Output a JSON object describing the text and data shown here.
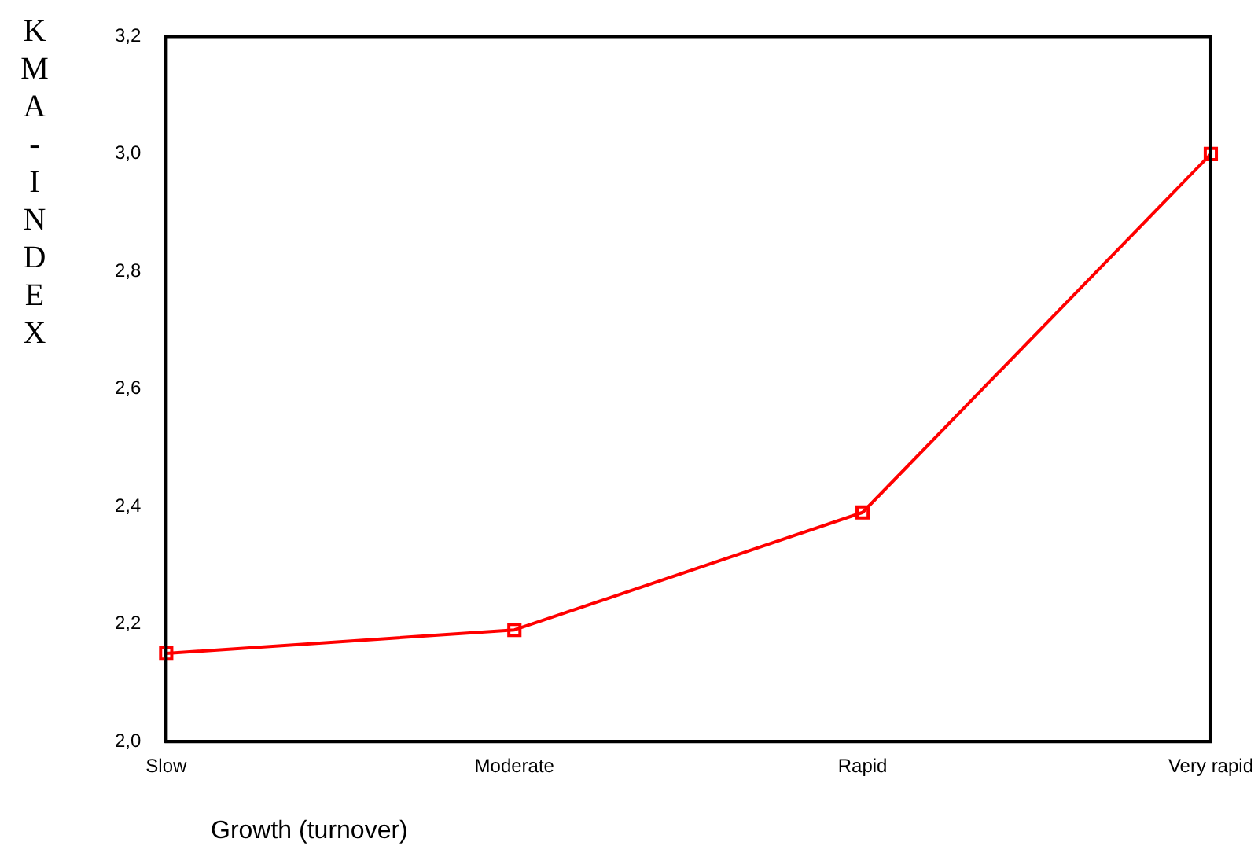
{
  "chart_data": {
    "type": "line",
    "xlabel": "Growth (turnover)",
    "ylabel": "KMA-INDEX",
    "categories": [
      "Slow",
      "Moderate",
      "Rapid",
      "Very rapid"
    ],
    "series": [
      {
        "color": "#ff0000",
        "values": [
          2.15,
          2.19,
          2.39,
          3.0
        ]
      }
    ],
    "ylim": [
      2.0,
      3.2
    ],
    "yticks": [
      {
        "value": 2.0,
        "label": "2,0"
      },
      {
        "value": 2.2,
        "label": "2,2"
      },
      {
        "value": 2.4,
        "label": "2,4"
      },
      {
        "value": 2.6,
        "label": "2,6"
      },
      {
        "value": 2.8,
        "label": "2,8"
      },
      {
        "value": 3.0,
        "label": "3,0"
      },
      {
        "value": 3.2,
        "label": "3,2"
      }
    ],
    "grid": false,
    "legend": false,
    "marker": "square",
    "line_style": "solid"
  }
}
